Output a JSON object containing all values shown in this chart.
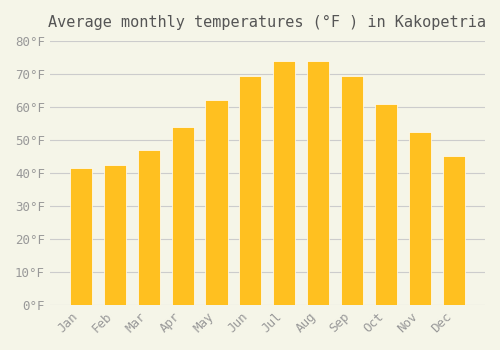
{
  "title": "Average monthly temperatures (°F ) in Kakopetria",
  "months": [
    "Jan",
    "Feb",
    "Mar",
    "Apr",
    "May",
    "Jun",
    "Jul",
    "Aug",
    "Sep",
    "Oct",
    "Nov",
    "Dec"
  ],
  "values": [
    41.5,
    42.5,
    47.0,
    54.0,
    62.0,
    69.5,
    74.0,
    74.0,
    69.5,
    61.0,
    52.5,
    45.0
  ],
  "bar_color_top": "#FFC020",
  "bar_color_bottom": "#FFB020",
  "background_color": "#F5F5E8",
  "grid_color": "#CCCCCC",
  "ylim": [
    0,
    80
  ],
  "ytick_step": 10,
  "title_fontsize": 11,
  "tick_fontsize": 9,
  "font_family": "monospace"
}
